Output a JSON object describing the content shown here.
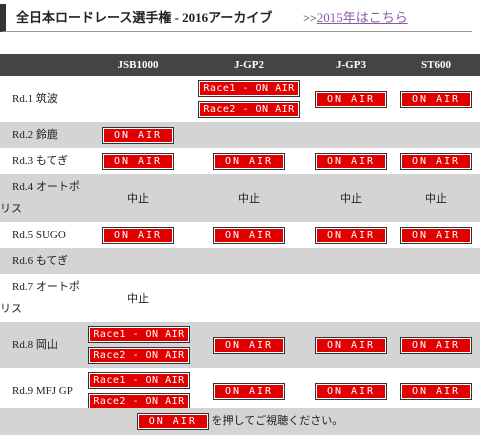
{
  "header": {
    "title": "全日本ロードレース選手権 - 2016アーカイブ",
    "prefix": ">>",
    "link": "2015年はこちら"
  },
  "table": {
    "columns": [
      "JSB1000",
      "J-GP2",
      "J-GP3",
      "ST600"
    ],
    "rows": [
      {
        "label": "Rd.1 筑波",
        "cells": [
          [],
          [
            "Race1 - ON AIR",
            "Race2 - ON AIR"
          ],
          [
            "ON AIR"
          ],
          [
            "ON AIR"
          ]
        ]
      },
      {
        "label": "Rd.2 鈴鹿",
        "cells": [
          [
            "ON AIR"
          ],
          [],
          [],
          []
        ]
      },
      {
        "label": "Rd.3 もてぎ",
        "cells": [
          [
            "ON AIR"
          ],
          [
            "ON AIR"
          ],
          [
            "ON AIR"
          ],
          [
            "ON AIR"
          ]
        ]
      },
      {
        "label": "Rd.4 オートポリス",
        "cells": [
          "中止",
          "中止",
          "中止",
          "中止"
        ]
      },
      {
        "label": "Rd.5 SUGO",
        "cells": [
          [
            "ON AIR"
          ],
          [
            "ON AIR"
          ],
          [
            "ON AIR"
          ],
          [
            "ON AIR"
          ]
        ]
      },
      {
        "label": "Rd.6 もてぎ",
        "cells": [
          [],
          [],
          [],
          []
        ]
      },
      {
        "label": "Rd.7 オートポリス",
        "cells": [
          "中止",
          [],
          [],
          []
        ]
      },
      {
        "label": "Rd.8 岡山",
        "cells": [
          [
            "Race1 - ON AIR",
            "Race2 - ON AIR"
          ],
          [
            "ON AIR"
          ],
          [
            "ON AIR"
          ],
          [
            "ON AIR"
          ]
        ]
      },
      {
        "label": "Rd.9 MFJ GP",
        "cells": [
          [
            "Race1 - ON AIR",
            "Race2 - ON AIR"
          ],
          [
            "ON AIR"
          ],
          [
            "ON AIR"
          ],
          [
            "ON AIR"
          ]
        ]
      }
    ]
  },
  "footer": {
    "button": "ON AIR",
    "text": "を押してご視聴ください。"
  }
}
